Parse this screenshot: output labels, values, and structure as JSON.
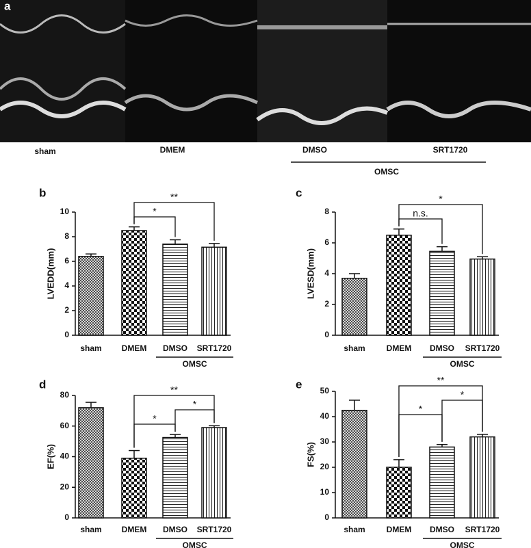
{
  "panel_a": {
    "letter": "a",
    "labels": [
      "sham",
      "DMEM",
      "DMSO",
      "SRT1720"
    ],
    "group": "OMSC"
  },
  "chart_data": [
    {
      "type": "bar",
      "letter": "b",
      "ylabel": "LVEDD(mm)",
      "categories": [
        "sham",
        "DMEM",
        "DMSO",
        "SRT1720"
      ],
      "values": [
        6.4,
        8.5,
        7.4,
        7.15
      ],
      "errors": [
        0.2,
        0.3,
        0.35,
        0.3
      ],
      "ylim": [
        0,
        10
      ],
      "yticks": [
        0,
        2,
        4,
        6,
        8,
        10
      ],
      "group": {
        "label": "OMSC",
        "from": "DMSO",
        "to": "SRT1720"
      },
      "annotations": [
        {
          "text": "*",
          "from": "DMEM",
          "to": "DMSO"
        },
        {
          "text": "**",
          "from": "DMEM",
          "to": "SRT1720"
        }
      ]
    },
    {
      "type": "bar",
      "letter": "c",
      "ylabel": "LVESD(mm)",
      "categories": [
        "sham",
        "DMEM",
        "DMSO",
        "SRT1720"
      ],
      "values": [
        3.7,
        6.5,
        5.45,
        4.95
      ],
      "errors": [
        0.3,
        0.4,
        0.3,
        0.15
      ],
      "ylim": [
        0,
        8
      ],
      "yticks": [
        0,
        2,
        4,
        6,
        8
      ],
      "group": {
        "label": "OMSC",
        "from": "DMSO",
        "to": "SRT1720"
      },
      "annotations": [
        {
          "text": "n.s.",
          "from": "DMEM",
          "to": "DMSO"
        },
        {
          "text": "*",
          "from": "DMEM",
          "to": "SRT1720"
        }
      ]
    },
    {
      "type": "bar",
      "letter": "d",
      "ylabel": "EF(%)",
      "categories": [
        "sham",
        "DMEM",
        "DMSO",
        "SRT1720"
      ],
      "values": [
        72,
        39,
        52.5,
        59
      ],
      "errors": [
        3.5,
        5,
        2,
        1.2
      ],
      "ylim": [
        0,
        80
      ],
      "yticks": [
        0,
        20,
        40,
        60,
        80
      ],
      "group": {
        "label": "OMSC",
        "from": "DMSO",
        "to": "SRT1720"
      },
      "annotations": [
        {
          "text": "*",
          "from": "DMEM",
          "to": "DMSO"
        },
        {
          "text": "*",
          "from": "DMSO",
          "to": "SRT1720"
        },
        {
          "text": "**",
          "from": "DMEM",
          "to": "SRT1720"
        }
      ]
    },
    {
      "type": "bar",
      "letter": "e",
      "ylabel": "FS(%)",
      "categories": [
        "sham",
        "DMEM",
        "DMSO",
        "SRT1720"
      ],
      "values": [
        42.5,
        20,
        28,
        32
      ],
      "errors": [
        4,
        3,
        1,
        1
      ],
      "ylim": [
        0,
        50
      ],
      "yticks": [
        0,
        10,
        20,
        30,
        40,
        50
      ],
      "group": {
        "label": "OMSC",
        "from": "DMSO",
        "to": "SRT1720"
      },
      "annotations": [
        {
          "text": "*",
          "from": "DMEM",
          "to": "DMSO"
        },
        {
          "text": "*",
          "from": "DMSO",
          "to": "SRT1720"
        },
        {
          "text": "**",
          "from": "DMEM",
          "to": "SRT1720"
        }
      ]
    }
  ]
}
